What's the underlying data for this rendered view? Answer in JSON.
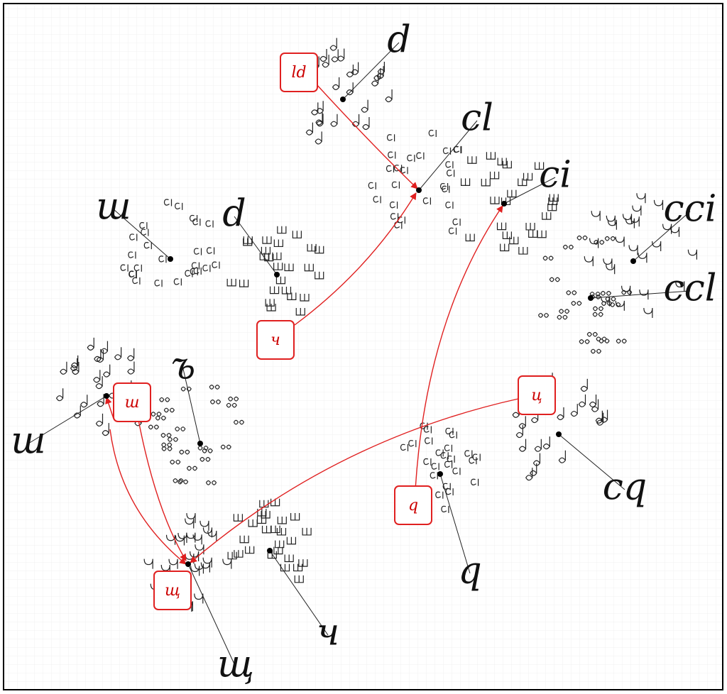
{
  "clusters": [
    {
      "label": "d"
    },
    {
      "label": "cl"
    },
    {
      "label": "ci"
    },
    {
      "label": "cci"
    },
    {
      "label": "ccl"
    },
    {
      "label": "cq"
    },
    {
      "label": "q"
    },
    {
      "label": "ч"
    },
    {
      "label": "щ"
    },
    {
      "label": "ъ"
    },
    {
      "label": "ш"
    },
    {
      "label": "ш"
    },
    {
      "label": "d"
    }
  ],
  "boxes": [
    {
      "label": "ld"
    },
    {
      "label": "ч"
    },
    {
      "label": "ш"
    },
    {
      "label": "щ"
    },
    {
      "label": "ц"
    },
    {
      "label": "q"
    }
  ]
}
